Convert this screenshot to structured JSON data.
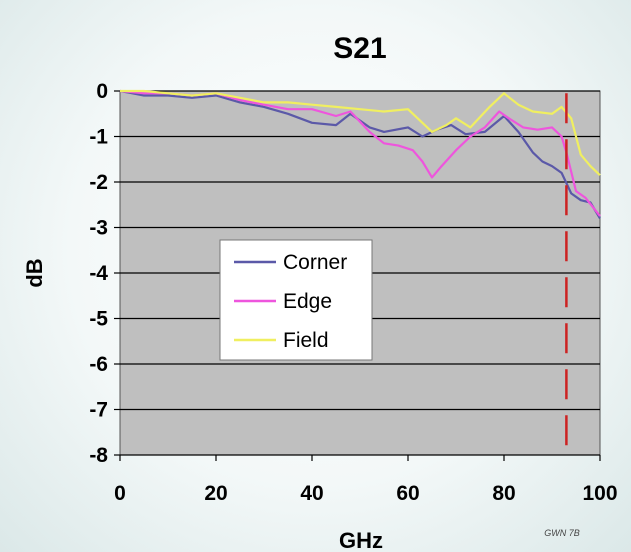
{
  "chart_data": {
    "type": "line",
    "title": "S21",
    "xlabel": "GHz",
    "ylabel": "dB",
    "xlim": [
      0,
      100
    ],
    "ylim": [
      -8,
      0
    ],
    "xticks": [
      0,
      20,
      40,
      60,
      80,
      100
    ],
    "yticks": [
      0,
      -1,
      -2,
      -3,
      -4,
      -5,
      -6,
      -7,
      -8
    ],
    "grid": "horizontal",
    "legend_position": "center-left",
    "series": [
      {
        "name": "Corner",
        "color": "#5b59a8",
        "x": [
          0,
          5,
          10,
          15,
          20,
          25,
          30,
          35,
          40,
          45,
          48,
          52,
          55,
          60,
          63,
          66,
          69,
          72,
          76,
          80,
          83,
          86,
          88,
          90,
          92,
          94,
          96,
          98,
          100
        ],
        "y": [
          0,
          -0.1,
          -0.1,
          -0.15,
          -0.1,
          -0.25,
          -0.35,
          -0.5,
          -0.7,
          -0.75,
          -0.5,
          -0.8,
          -0.9,
          -0.8,
          -1.0,
          -0.85,
          -0.75,
          -0.95,
          -0.9,
          -0.55,
          -0.9,
          -1.35,
          -1.55,
          -1.65,
          -1.8,
          -2.25,
          -2.4,
          -2.45,
          -2.8
        ]
      },
      {
        "name": "Edge",
        "color": "#ee55dd",
        "x": [
          0,
          5,
          10,
          15,
          20,
          25,
          30,
          35,
          40,
          45,
          48,
          52,
          55,
          58,
          61,
          63,
          65,
          67,
          70,
          73,
          76,
          79,
          81,
          84,
          87,
          90,
          92,
          93,
          95,
          97,
          100
        ],
        "y": [
          0,
          -0.05,
          -0.05,
          -0.1,
          -0.05,
          -0.2,
          -0.3,
          -0.4,
          -0.4,
          -0.55,
          -0.45,
          -0.9,
          -1.15,
          -1.2,
          -1.3,
          -1.55,
          -1.9,
          -1.65,
          -1.3,
          -1.0,
          -0.8,
          -0.45,
          -0.6,
          -0.8,
          -0.85,
          -0.8,
          -1.0,
          -1.35,
          -2.2,
          -2.35,
          -2.75
        ]
      },
      {
        "name": "Field",
        "color": "#f0ef60",
        "x": [
          0,
          5,
          10,
          15,
          20,
          25,
          30,
          35,
          40,
          45,
          50,
          55,
          60,
          65,
          68,
          70,
          73,
          77,
          80,
          83,
          86,
          90,
          92,
          94,
          96,
          98,
          100
        ],
        "y": [
          0,
          0,
          -0.05,
          -0.1,
          -0.05,
          -0.15,
          -0.25,
          -0.25,
          -0.3,
          -0.35,
          -0.4,
          -0.45,
          -0.4,
          -0.9,
          -0.75,
          -0.6,
          -0.8,
          -0.35,
          -0.05,
          -0.3,
          -0.45,
          -0.5,
          -0.35,
          -0.6,
          -1.4,
          -1.65,
          -1.85
        ]
      }
    ],
    "marker_line": {
      "x": 93,
      "color": "#cc2222",
      "style": "dashed"
    },
    "footnote": "GWN 7B"
  }
}
